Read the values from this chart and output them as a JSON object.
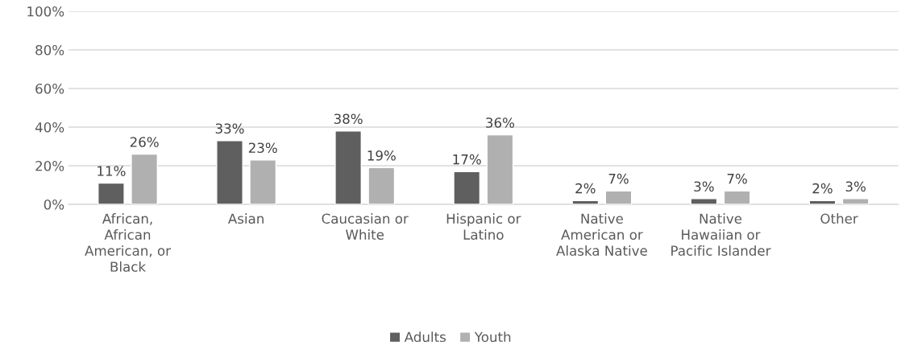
{
  "chart_data": {
    "type": "bar",
    "categories": [
      "African,\nAfrican\nAmerican, or\nBlack",
      "Asian",
      "Caucasian or\nWhite",
      "Hispanic or\nLatino",
      "Native\nAmerican or\nAlaska Native",
      "Native\nHawaiian or\nPacific Islander",
      "Other"
    ],
    "series": [
      {
        "name": "Adults",
        "color": "#5f5f5f",
        "values": [
          11,
          33,
          38,
          17,
          2,
          3,
          2
        ],
        "value_labels": [
          "11%",
          "33%",
          "38%",
          "17%",
          "2%",
          "3%",
          "2%"
        ]
      },
      {
        "name": "Youth",
        "color": "#b0b0b0",
        "values": [
          26,
          23,
          19,
          36,
          7,
          7,
          3
        ],
        "value_labels": [
          "26%",
          "23%",
          "19%",
          "36%",
          "7%",
          "7%",
          "3%"
        ]
      }
    ],
    "ylim": [
      0,
      100
    ],
    "yticks": [
      {
        "value": 0,
        "label": "0%"
      },
      {
        "value": 20,
        "label": "20%"
      },
      {
        "value": 40,
        "label": "40%"
      },
      {
        "value": 60,
        "label": "60%"
      },
      {
        "value": 80,
        "label": "80%"
      },
      {
        "value": 100,
        "label": "100%"
      }
    ],
    "grid": "y",
    "legend": "bottom"
  }
}
